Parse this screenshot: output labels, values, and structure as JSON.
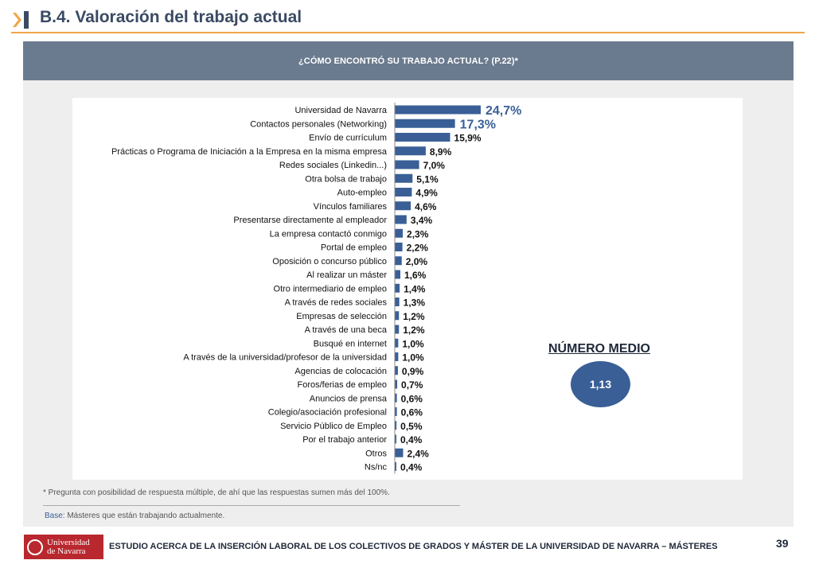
{
  "header": {
    "title": "B.4. Valoración del trabajo actual"
  },
  "panel": {
    "question": "¿CÓMO ENCONTRÓ SU TRABAJO ACTUAL? (P.22)*"
  },
  "mean": {
    "title": "NÚMERO MEDIO",
    "value": "1,13"
  },
  "footnote": "* Pregunta con posibilidad de respuesta múltiple, de  ahí que las respuestas sumen más del 100%.",
  "base": {
    "label": "Base:",
    "text": " Másteres que están trabajando actualmente."
  },
  "footer": {
    "logo_text_line1": "Universidad",
    "logo_text_line2": "de Navarra",
    "study": "ESTUDIO ACERCA DE LA INSERCIÓN LABORAL DE LOS COLECTIVOS DE GRADOS Y MÁSTER DE LA UNIVERSIDAD DE NAVARRA – MÁSTERES",
    "page": "39"
  },
  "colors": {
    "bar": "#3a5f97",
    "accent": "#f0a64b",
    "header_band": "#6b7b8f",
    "title": "#3a4a63",
    "logo_red": "#b9282e"
  },
  "icons": {
    "header": "double-chevron-icon",
    "logo": "university-seal-icon"
  },
  "chart_data": {
    "type": "bar",
    "orientation": "horizontal",
    "categories": [
      "Universidad de Navarra",
      "Contactos personales (Networking)",
      "Envío de currículum",
      "Prácticas o Programa de Iniciación a la Empresa en la misma empresa",
      "Redes sociales (Linkedin...)",
      "Otra bolsa de trabajo",
      "Auto-empleo",
      "Vínculos familiares",
      "Presentarse directamente al empleador",
      "La empresa contactó conmigo",
      "Portal de empleo",
      "Oposición o concurso público",
      "Al realizar un máster",
      "Otro intermediario de empleo",
      "A través de redes sociales",
      "Empresas de selección",
      "A través de una beca",
      "Busqué en internet",
      "A través de la universidad/profesor de la universidad",
      "Agencias de colocación",
      "Foros/ferias de empleo",
      "Anuncios de prensa",
      "Colegio/asociación profesional",
      "Servicio Público de Empleo",
      "Por el trabajo anterior",
      "Otros",
      "Ns/nc"
    ],
    "values": [
      24.7,
      17.3,
      15.9,
      8.9,
      7.0,
      5.1,
      4.9,
      4.6,
      3.4,
      2.3,
      2.2,
      2.0,
      1.6,
      1.4,
      1.3,
      1.2,
      1.2,
      1.0,
      1.0,
      0.9,
      0.7,
      0.6,
      0.6,
      0.5,
      0.4,
      2.4,
      0.4
    ],
    "value_labels": [
      "24,7%",
      "17,3%",
      "15,9%",
      "8,9%",
      "7,0%",
      "5,1%",
      "4,9%",
      "4,6%",
      "3,4%",
      "2,3%",
      "2,2%",
      "2,0%",
      "1,6%",
      "1,4%",
      "1,3%",
      "1,2%",
      "1,2%",
      "1,0%",
      "1,0%",
      "0,9%",
      "0,7%",
      "0,6%",
      "0,6%",
      "0,5%",
      "0,4%",
      "2,4%",
      "0,4%"
    ],
    "highlight_labels": [
      0,
      1
    ],
    "xlim": [
      0,
      25
    ],
    "grid": false,
    "legend": "none"
  }
}
